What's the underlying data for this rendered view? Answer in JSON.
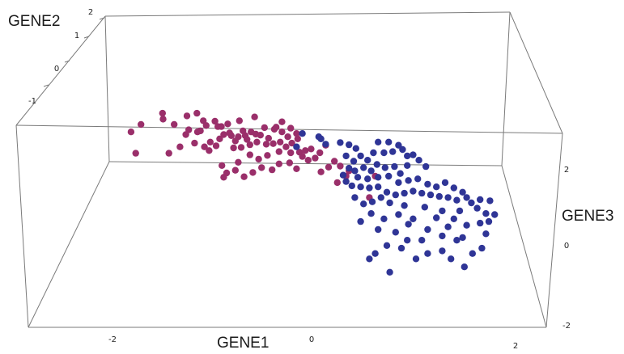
{
  "chart_data": {
    "type": "scatter",
    "projection": "3d-box",
    "xlabel": "GENE1",
    "ylabel": "GENE2",
    "zlabel": "GENE3",
    "grid": false,
    "axis_ticks": {
      "gene1": [
        "-2",
        "0",
        "2"
      ],
      "gene2": [
        "2",
        "1",
        "0",
        "-1"
      ],
      "gene3": [
        "2",
        "0",
        "-2"
      ]
    },
    "colors": {
      "class_a": "#9a2f6a",
      "class_b": "#2f3596",
      "box": "#7a7a7a"
    },
    "series": [
      {
        "color": "#9a2f6a",
        "points": [
          [
            -3.14,
            0.33
          ],
          [
            -2.97,
            0.47
          ],
          [
            -3.06,
            -0.07
          ],
          [
            -2.59,
            0.57
          ],
          [
            -2.49,
            -0.07
          ],
          [
            -2.3,
            0.05
          ],
          [
            -2.4,
            0.47
          ],
          [
            -2.18,
            0.63
          ],
          [
            -2.15,
            0.37
          ],
          [
            -2.01,
            0.68
          ],
          [
            -1.95,
            0.35
          ],
          [
            -2.05,
            0.12
          ],
          [
            -1.88,
            0.05
          ],
          [
            -1.8,
            -0.02
          ],
          [
            -1.68,
            0.07
          ],
          [
            -1.55,
            0.28
          ],
          [
            -1.65,
            0.43
          ],
          [
            -1.42,
            0.26
          ],
          [
            -1.3,
            0.24
          ],
          [
            -1.18,
            0.26
          ],
          [
            -1.08,
            0.33
          ],
          [
            -1.0,
            0.29
          ],
          [
            -0.92,
            0.27
          ],
          [
            -0.98,
            0.14
          ],
          [
            -1.1,
            0.09
          ],
          [
            -1.25,
            0.04
          ],
          [
            -1.38,
            0.03
          ],
          [
            -0.82,
            0.1
          ],
          [
            -0.7,
            0.11
          ],
          [
            -0.58,
            0.14
          ],
          [
            -0.48,
            0.05
          ],
          [
            -1.9,
            0.54
          ],
          [
            -1.7,
            0.53
          ],
          [
            -1.48,
            0.48
          ],
          [
            -1.28,
            0.54
          ],
          [
            -1.22,
            0.35
          ],
          [
            -1.02,
            0.61
          ],
          [
            -0.85,
            0.41
          ],
          [
            -0.68,
            0.38
          ],
          [
            -0.55,
            0.33
          ],
          [
            -0.45,
            0.24
          ],
          [
            -0.38,
            0.12
          ],
          [
            -0.28,
            0.2
          ],
          [
            -1.59,
            0.43
          ],
          [
            -1.45,
            0.31
          ],
          [
            -1.85,
            0.45
          ],
          [
            -1.62,
            0.2
          ],
          [
            -1.35,
            0.16
          ],
          [
            -1.15,
            0.19
          ],
          [
            -0.78,
            0.21
          ],
          [
            -0.6,
            -0.04
          ],
          [
            -0.4,
            -0.06
          ],
          [
            -0.25,
            -0.05
          ],
          [
            -0.15,
            -0.02
          ],
          [
            -0.05,
            0.01
          ],
          [
            -1.1,
            -0.1
          ],
          [
            -0.95,
            -0.18
          ],
          [
            -0.8,
            -0.11
          ],
          [
            -1.3,
            -0.24
          ],
          [
            -1.2,
            -0.51
          ],
          [
            -1.05,
            -0.43
          ],
          [
            -0.9,
            -0.34
          ],
          [
            -0.72,
            -0.38
          ],
          [
            -0.6,
            -0.27
          ],
          [
            -0.42,
            -0.25
          ],
          [
            -0.3,
            -0.36
          ],
          [
            -0.2,
            -0.13
          ],
          [
            -0.1,
            -0.2
          ],
          [
            0.02,
            -0.16
          ],
          [
            0.1,
            -0.06
          ],
          [
            0.2,
            0.08
          ],
          [
            0.35,
            -0.22
          ],
          [
            0.45,
            -0.31
          ],
          [
            0.25,
            -0.33
          ],
          [
            0.12,
            -0.42
          ],
          [
            0.55,
            -0.5
          ],
          [
            0.4,
            -0.62
          ],
          [
            -1.55,
            -0.52
          ],
          [
            -1.5,
            -0.44
          ],
          [
            -1.35,
            -0.39
          ],
          [
            -1.58,
            -0.3
          ],
          [
            -2.0,
            0.33
          ],
          [
            -2.2,
            0.28
          ],
          [
            -0.65,
            0.42
          ],
          [
            -0.55,
            0.52
          ],
          [
            -0.4,
            0.4
          ],
          [
            -0.3,
            0.3
          ],
          [
            1.05,
            -0.5
          ],
          [
            0.95,
            -0.9
          ],
          [
            -1.78,
            0.14
          ],
          [
            0.6,
            -0.4
          ],
          [
            -2.6,
            0.68
          ]
        ]
      },
      {
        "color": "#2f3596",
        "points": [
          [
            0.08,
            0.24
          ],
          [
            0.12,
            0.2
          ],
          [
            -0.2,
            0.3
          ],
          [
            -0.3,
            0.05
          ],
          [
            0.2,
            0.1
          ],
          [
            0.45,
            0.13
          ],
          [
            0.6,
            0.09
          ],
          [
            0.72,
            0.02
          ],
          [
            0.55,
            -0.12
          ],
          [
            0.68,
            -0.22
          ],
          [
            0.8,
            -0.12
          ],
          [
            0.92,
            -0.2
          ],
          [
            1.02,
            -0.06
          ],
          [
            1.2,
            -0.06
          ],
          [
            1.1,
            0.14
          ],
          [
            1.28,
            0.14
          ],
          [
            1.35,
            -0.04
          ],
          [
            1.45,
            0.08
          ],
          [
            1.52,
            0.0
          ],
          [
            1.6,
            -0.12
          ],
          [
            1.7,
            -0.1
          ],
          [
            1.8,
            -0.2
          ],
          [
            1.92,
            -0.32
          ],
          [
            1.6,
            -0.3
          ],
          [
            1.48,
            -0.45
          ],
          [
            1.38,
            -0.32
          ],
          [
            1.22,
            -0.34
          ],
          [
            1.08,
            -0.28
          ],
          [
            0.98,
            -0.4
          ],
          [
            0.85,
            -0.34
          ],
          [
            0.7,
            -0.4
          ],
          [
            0.6,
            -0.35
          ],
          [
            0.75,
            -0.52
          ],
          [
            0.92,
            -0.55
          ],
          [
            1.1,
            -0.52
          ],
          [
            1.28,
            -0.5
          ],
          [
            1.45,
            -0.62
          ],
          [
            1.62,
            -0.58
          ],
          [
            1.78,
            -0.55
          ],
          [
            1.95,
            -0.65
          ],
          [
            2.1,
            -0.7
          ],
          [
            2.25,
            -0.62
          ],
          [
            2.4,
            -0.72
          ],
          [
            2.55,
            -0.8
          ],
          [
            2.62,
            -0.9
          ],
          [
            2.45,
            -0.95
          ],
          [
            2.3,
            -0.9
          ],
          [
            2.15,
            -0.88
          ],
          [
            2.0,
            -0.85
          ],
          [
            1.85,
            -0.82
          ],
          [
            1.7,
            -0.78
          ],
          [
            1.55,
            -0.82
          ],
          [
            1.4,
            -0.85
          ],
          [
            1.25,
            -0.8
          ],
          [
            1.1,
            -0.7
          ],
          [
            0.95,
            -0.72
          ],
          [
            0.8,
            -0.7
          ],
          [
            0.65,
            -0.68
          ],
          [
            0.55,
            -0.6
          ],
          [
            0.5,
            -0.48
          ],
          [
            1.3,
            -1.0
          ],
          [
            1.55,
            -1.05
          ],
          [
            1.9,
            -1.08
          ],
          [
            2.2,
            -1.15
          ],
          [
            2.5,
            -1.15
          ],
          [
            2.8,
            -1.1
          ],
          [
            2.95,
            -1.2
          ],
          [
            3.1,
            -1.22
          ],
          [
            3.02,
            -0.96
          ],
          [
            2.85,
            -0.94
          ],
          [
            2.7,
            -1.0
          ],
          [
            2.4,
            -1.3
          ],
          [
            2.1,
            -1.28
          ],
          [
            1.7,
            -1.3
          ],
          [
            1.45,
            -1.22
          ],
          [
            1.2,
            -1.3
          ],
          [
            0.98,
            -1.2
          ],
          [
            0.85,
            -1.02
          ],
          [
            1.15,
            -0.9
          ],
          [
            1.0,
            -0.98
          ],
          [
            0.7,
            -0.9
          ],
          [
            1.62,
            -1.4
          ],
          [
            1.95,
            -1.5
          ],
          [
            2.3,
            -1.45
          ],
          [
            2.62,
            -1.42
          ],
          [
            2.85,
            -1.38
          ],
          [
            3.0,
            -1.35
          ],
          [
            1.4,
            -1.55
          ],
          [
            1.1,
            -1.5
          ],
          [
            0.8,
            -1.35
          ],
          [
            2.55,
            -1.65
          ],
          [
            2.2,
            -1.62
          ],
          [
            1.85,
            -1.7
          ],
          [
            1.5,
            -1.85
          ],
          [
            1.25,
            -1.8
          ],
          [
            1.05,
            -1.95
          ],
          [
            0.95,
            -2.05
          ],
          [
            1.3,
            -2.3
          ],
          [
            2.72,
            -1.95
          ],
          [
            2.58,
            -2.2
          ],
          [
            2.88,
            -1.85
          ],
          [
            2.45,
            -1.7
          ],
          [
            2.2,
            -1.9
          ],
          [
            2.95,
            -1.58
          ],
          [
            1.95,
            -1.95
          ],
          [
            1.75,
            -2.05
          ],
          [
            2.35,
            -2.05
          ],
          [
            1.6,
            -1.7
          ]
        ]
      }
    ]
  }
}
